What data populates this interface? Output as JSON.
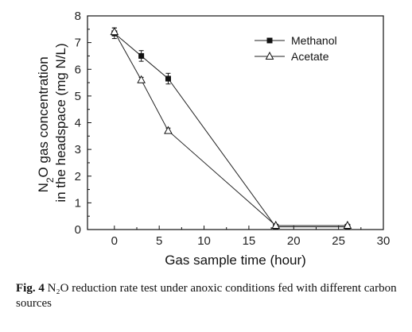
{
  "chart_data": {
    "type": "line",
    "x_title": "Gas sample time (hour)",
    "y_title_line1": "N2O gas concentration",
    "y_title_line2": "in the headspace (mg N/L)",
    "xlim": [
      -3,
      30
    ],
    "ylim": [
      0,
      8
    ],
    "x_ticks": [
      "0",
      "5",
      "10",
      "15",
      "20",
      "25",
      "30"
    ],
    "y_ticks": [
      "0",
      "1",
      "2",
      "3",
      "4",
      "5",
      "6",
      "7",
      "8"
    ],
    "legend_placement": "top-right",
    "series": [
      {
        "name": "Methanol",
        "marker": "filled-square",
        "x": [
          0,
          3,
          6,
          18,
          26
        ],
        "y": [
          7.35,
          6.5,
          5.65,
          0.1,
          0.1
        ],
        "err": [
          0.2,
          0.2,
          0.2,
          0.05,
          0.05
        ]
      },
      {
        "name": "Acetate",
        "marker": "open-triangle",
        "x": [
          0,
          3,
          6,
          18,
          26
        ],
        "y": [
          7.4,
          5.6,
          3.7,
          0.15,
          0.15
        ],
        "err": [
          0.15,
          0.1,
          0.1,
          0.05,
          0.05
        ]
      }
    ]
  },
  "caption": {
    "label": "Fig. 4",
    "text": " N₂O reduction rate test under anoxic conditions fed with different carbon sources"
  }
}
